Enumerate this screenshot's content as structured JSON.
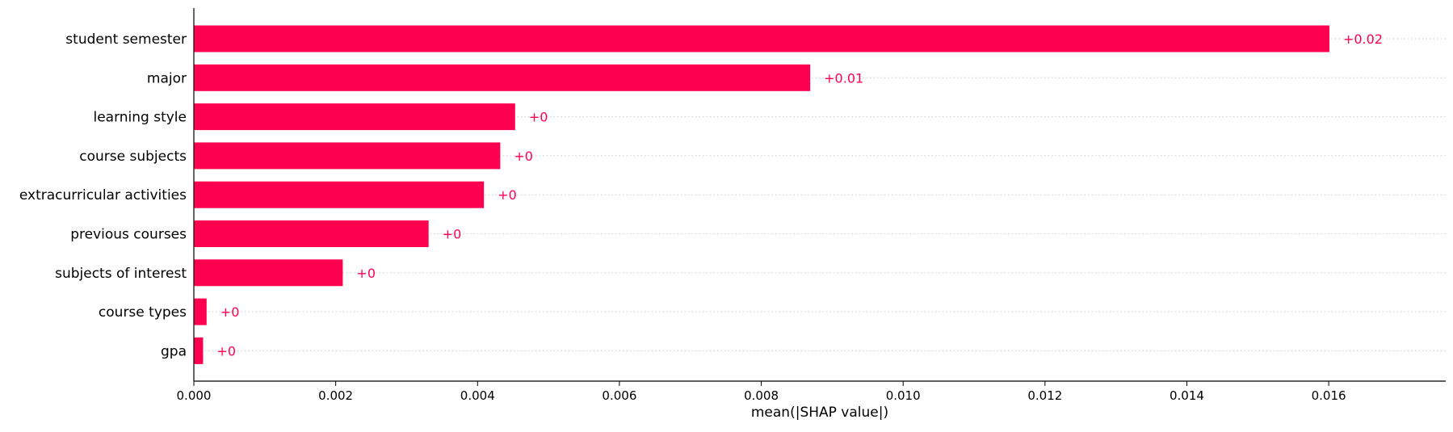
{
  "chart_data": {
    "type": "bar",
    "orientation": "horizontal",
    "title": "",
    "xlabel": "mean(|SHAP value|)",
    "ylabel": "",
    "categories": [
      "student semester",
      "major",
      "learning style",
      "course subjects",
      "extracurricular activities",
      "previous courses",
      "subjects of interest",
      "course types",
      "gpa"
    ],
    "values": [
      0.01601,
      0.00869,
      0.00453,
      0.00432,
      0.00409,
      0.00331,
      0.0021,
      0.00018,
      0.00013
    ],
    "value_labels": [
      "+0.02",
      "+0.01",
      "+0",
      "+0",
      "+0",
      "+0",
      "+0",
      "+0",
      "+0"
    ],
    "xlim": [
      0,
      0.01765
    ],
    "xticks": [
      0.0,
      0.002,
      0.004,
      0.006,
      0.008,
      0.01,
      0.012,
      0.014,
      0.016
    ],
    "xtick_labels": [
      "0.000",
      "0.002",
      "0.004",
      "0.006",
      "0.008",
      "0.010",
      "0.012",
      "0.014",
      "0.016"
    ],
    "grid": "horizontal dotted lines per bar",
    "colors": {
      "bar": "#ff0051",
      "value_label": "#ff0051",
      "grid": "#cccccc",
      "axis": "#000000"
    }
  }
}
